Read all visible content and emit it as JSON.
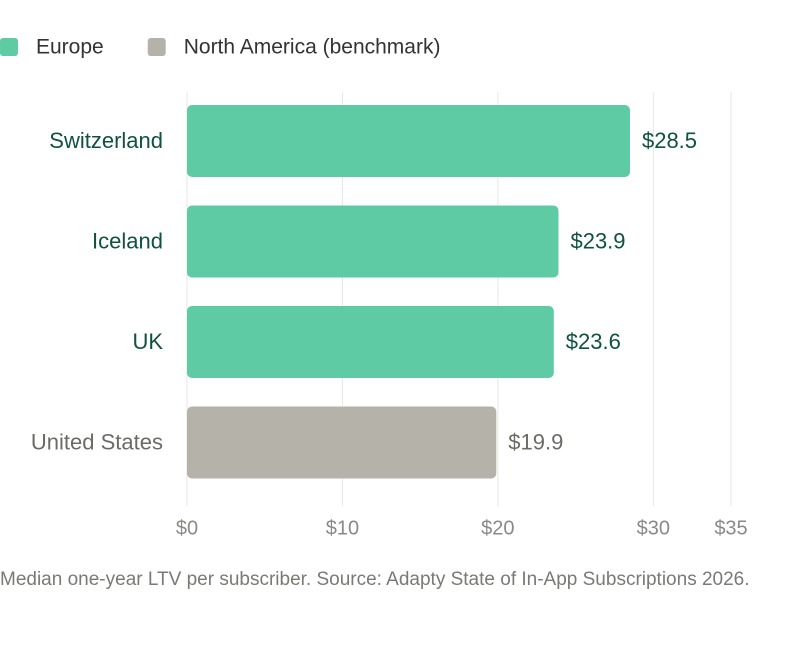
{
  "chart_data": {
    "type": "hbar",
    "categories": [
      "Switzerland",
      "Iceland",
      "UK",
      "United States"
    ],
    "series": [
      {
        "name": "Europe",
        "color": "#5ecba5",
        "label_color": "#0f5240",
        "values": [
          28.5,
          23.9,
          23.6,
          null
        ],
        "value_labels": [
          "$28.5",
          "$23.9",
          "$23.6",
          null
        ]
      },
      {
        "name": "North America (benchmark)",
        "color": "#b5b2aa",
        "label_color": "#6b6b66",
        "values": [
          null,
          null,
          null,
          19.9
        ],
        "value_labels": [
          null,
          null,
          null,
          "$19.9"
        ]
      }
    ],
    "xlim": [
      0,
      35
    ],
    "xticks": [
      {
        "value": 0,
        "label": "$0"
      },
      {
        "value": 10,
        "label": "$10"
      },
      {
        "value": 20,
        "label": "$20"
      },
      {
        "value": 30,
        "label": "$30"
      },
      {
        "value": 35,
        "label": "$35"
      }
    ],
    "grid": true,
    "legend": "top-left",
    "note": "Median one-year LTV per subscriber. Source: Adapty State of In-App Subscriptions 2026."
  }
}
